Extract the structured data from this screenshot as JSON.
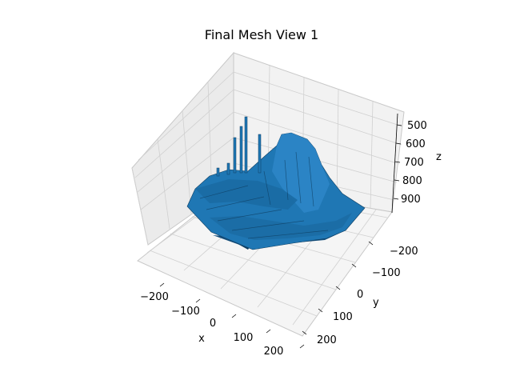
{
  "chart_data": {
    "type": "surface3d",
    "title": "Final Mesh View 1",
    "xlabel": "x",
    "ylabel": "y",
    "zlabel": "z",
    "x_ticks": [
      "−200",
      "−100",
      "0",
      "100",
      "200"
    ],
    "y_ticks": [
      "−200",
      "−100",
      "0",
      "100",
      "200"
    ],
    "z_ticks": [
      "500",
      "600",
      "700",
      "800",
      "900"
    ],
    "xlim": [
      -250,
      250
    ],
    "ylim": [
      -250,
      250
    ],
    "zlim": [
      460,
      960
    ],
    "z_axis_inverted": true,
    "grid": true,
    "colors": {
      "surface": "#1f77b4",
      "surface_dark": "#0e3d60",
      "surface_light": "#2e86c8",
      "pane_left": "#ebebeb",
      "pane_back": "#f2f2f2",
      "pane_floor": "#f7f7f7",
      "grid": "#cfcfcf"
    }
  }
}
